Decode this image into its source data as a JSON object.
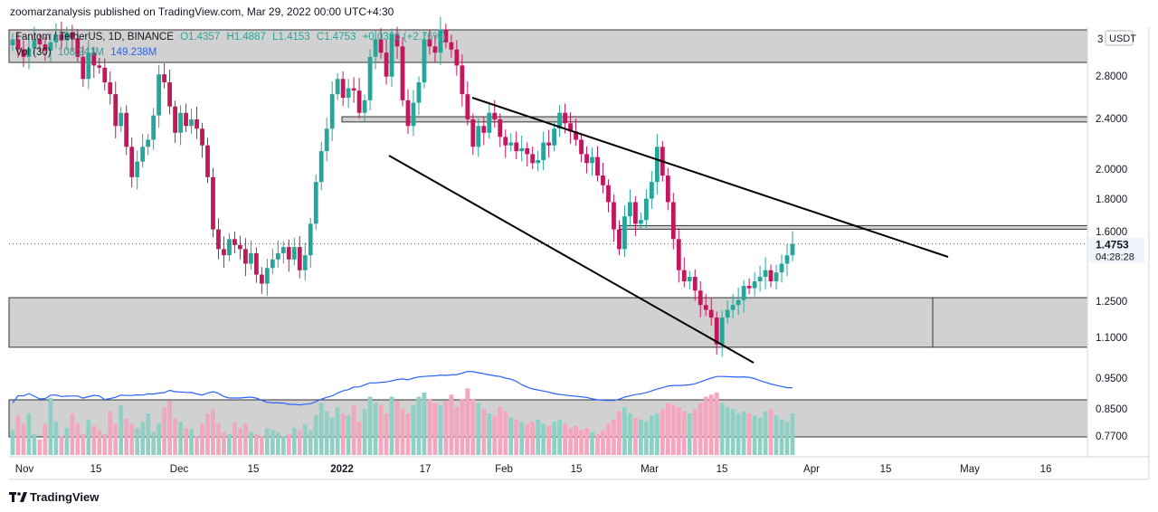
{
  "header": {
    "published_line": "zoomarzanalysis published on TradingView.com, Mar 29, 2022 00:00 UTC+4:30"
  },
  "legend": {
    "symbol": "Fantom / TetherUS, 1D, BINANCE",
    "open": "O1.4357",
    "high": "H1.4887",
    "low": "L1.4153",
    "close": "C1.4753",
    "change": "+0.0396 (+2.76%)",
    "volume_label": "Vol (30)",
    "volume_value": "108.241M",
    "volume_ma": "149.238M"
  },
  "price_axis": {
    "currency_badge": "USDT",
    "top_label": "3",
    "ticks": [
      "2.8000",
      "2.4000",
      "2.0000",
      "1.8000",
      "1.6000",
      "1.2500",
      "1.1000",
      "0.9500",
      "0.8500",
      "0.7700"
    ],
    "last_price": "1.4753",
    "countdown": "04:28:28"
  },
  "time_axis": {
    "ticks": [
      "Nov",
      "15",
      "Dec",
      "15",
      "2022",
      "17",
      "Feb",
      "15",
      "Mar",
      "15",
      "Apr",
      "15",
      "May",
      "16"
    ]
  },
  "colors": {
    "up": "#26a69a",
    "down": "#c2185b",
    "vol_up": "#8fd0c5",
    "vol_down": "#f2a7bf",
    "vol_ma": "#2962ff",
    "zone": "#d1d1d1",
    "trendline": "#000000"
  },
  "chart_data": {
    "type": "candlestick",
    "symbol": "FTMUSDT",
    "interval": "1D",
    "scale": "log",
    "y_range": [
      0.72,
      3.05
    ],
    "x_ticks": [
      "Nov",
      "15",
      "Dec",
      "15",
      "2022",
      "17",
      "Feb",
      "15",
      "Mar",
      "15",
      "Apr",
      "15",
      "May",
      "16"
    ],
    "close_series_approx": [
      2.95,
      2.85,
      2.78,
      2.86,
      2.95,
      2.9,
      2.84,
      2.92,
      3.0,
      2.94,
      3.02,
      2.96,
      2.78,
      2.58,
      2.82,
      2.7,
      2.68,
      2.55,
      2.45,
      2.2,
      2.3,
      2.05,
      1.85,
      1.95,
      2.05,
      2.1,
      2.28,
      2.62,
      2.55,
      2.35,
      2.15,
      2.3,
      2.2,
      2.25,
      2.18,
      2.06,
      1.85,
      1.55,
      1.45,
      1.42,
      1.5,
      1.47,
      1.45,
      1.38,
      1.43,
      1.33,
      1.29,
      1.36,
      1.4,
      1.43,
      1.46,
      1.4,
      1.46,
      1.35,
      1.42,
      1.58,
      1.82,
      2.02,
      2.18,
      2.45,
      2.58,
      2.42,
      2.5,
      2.48,
      2.3,
      2.4,
      2.78,
      2.95,
      2.82,
      2.6,
      3.0,
      2.88,
      2.4,
      2.2,
      2.38,
      2.55,
      2.95,
      2.88,
      2.82,
      3.05,
      2.92,
      2.85,
      2.7,
      2.45,
      2.25,
      2.05,
      2.2,
      2.15,
      2.3,
      2.25,
      2.12,
      2.06,
      2.08,
      2.02,
      2.04,
      2.0,
      1.94,
      1.96,
      2.08,
      2.06,
      2.18,
      2.3,
      2.22,
      2.16,
      2.1,
      2.0,
      1.94,
      1.98,
      1.86,
      1.8,
      1.7,
      1.55,
      1.45,
      1.62,
      1.7,
      1.58,
      1.6,
      1.72,
      1.82,
      2.05,
      1.86,
      1.7,
      1.5,
      1.35,
      1.3,
      1.32,
      1.26,
      1.2,
      1.18,
      1.15,
      1.05,
      1.15,
      1.18,
      1.2,
      1.22,
      1.28,
      1.27,
      1.3,
      1.32,
      1.35,
      1.3,
      1.34,
      1.38,
      1.42,
      1.4753
    ],
    "volume_series_approx": [
      64,
      78,
      70,
      80,
      60,
      55,
      70,
      95,
      72,
      58,
      66,
      80,
      70,
      60,
      74,
      68,
      64,
      60,
      82,
      70,
      88,
      75,
      70,
      66,
      72,
      80,
      62,
      70,
      86,
      92,
      75,
      72,
      66,
      65,
      58,
      70,
      80,
      84,
      70,
      62,
      60,
      72,
      66,
      70,
      62,
      60,
      58,
      66,
      64,
      62,
      58,
      60,
      66,
      64,
      70,
      64,
      78,
      90,
      82,
      76,
      86,
      80,
      78,
      88,
      72,
      84,
      96,
      90,
      88,
      80,
      96,
      92,
      84,
      80,
      88,
      96,
      100,
      94,
      90,
      88,
      92,
      98,
      86,
      94,
      104,
      94,
      90,
      84,
      80,
      78,
      86,
      82,
      76,
      74,
      72,
      70,
      72,
      74,
      70,
      68,
      72,
      74,
      70,
      66,
      68,
      64,
      66,
      62,
      60,
      64,
      70,
      74,
      82,
      86,
      80,
      76,
      74,
      72,
      78,
      80,
      84,
      90,
      88,
      86,
      82,
      80,
      84,
      90,
      96,
      98,
      100,
      90,
      86,
      84,
      80,
      82,
      80,
      78,
      76,
      82,
      84,
      78,
      74,
      72,
      80
    ],
    "volume_ma_label": "Vol (30)",
    "last_volume": "108.241M",
    "volume_ma_value": "149.238M",
    "annotations": [
      {
        "kind": "support_zone",
        "price_low": 1.04,
        "price_high": 1.23
      },
      {
        "kind": "resistance_zone",
        "price_low": 2.9,
        "price_high": 3.05
      },
      {
        "kind": "horizontal_band",
        "price_low": 2.23,
        "price_high": 2.27
      },
      {
        "kind": "horizontal_band",
        "price_low": 1.56,
        "price_high": 1.57
      },
      {
        "kind": "volume_band",
        "level_low": 0.77,
        "level_high": 0.88
      },
      {
        "kind": "falling_wedge_upper_line",
        "from_price": 2.62,
        "to_price": 1.48
      },
      {
        "kind": "falling_wedge_lower_line",
        "from_price": 2.1,
        "to_price": 0.97
      }
    ],
    "grid": false,
    "legend_position": "top-left"
  }
}
